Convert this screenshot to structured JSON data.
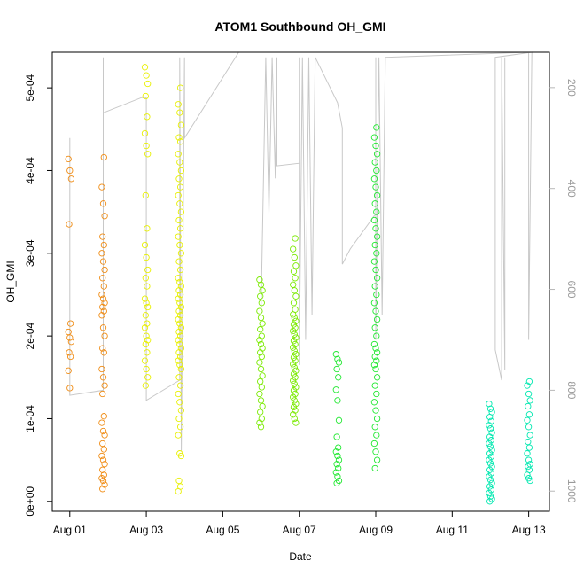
{
  "chart_data": {
    "type": "scatter",
    "title": "ATOM1 Southbound OH_GMI",
    "xlabel": "Date",
    "ylabel": "OH_GMI",
    "x_axis": {
      "type": "date",
      "range": [
        "2016-07-31T13:00",
        "2016-08-13T13:00"
      ],
      "ticks": [
        "2016-08-01",
        "2016-08-03",
        "2016-08-05",
        "2016-08-07",
        "2016-08-09",
        "2016-08-11",
        "2016-08-13"
      ],
      "tick_labels": [
        "Aug 01",
        "Aug 03",
        "Aug 05",
        "Aug 07",
        "Aug 09",
        "Aug 11",
        "Aug 13"
      ]
    },
    "y_axis": {
      "range": [
        -1.2e-05,
        0.000543
      ],
      "ticks": [
        0,
        0.0001,
        0.0002,
        0.0003,
        0.0004,
        0.0005
      ],
      "tick_labels": [
        "0e+00",
        "1e-04",
        "2e-04",
        "3e-04",
        "4e-04",
        "5e-04"
      ]
    },
    "y2_axis": {
      "description": "pressure (reversed)",
      "range": [
        1040,
        130
      ],
      "ticks": [
        200,
        400,
        600,
        800,
        1000
      ],
      "tick_labels": [
        "200",
        "400",
        "600",
        "800",
        "1000"
      ],
      "color": "#b8b8b8"
    },
    "grid": false,
    "series": [
      {
        "color": "#f08c14",
        "groups": [
          {
            "date": "2016-08-01T00:00",
            "min": 0.000137,
            "max": 0.000414,
            "values": [
              0.000414,
              0.0004,
              0.00039,
              0.000335,
              0.000215,
              0.000205,
              0.000198,
              0.000193,
              0.00018,
              0.000175,
              0.000158,
              0.000137
            ]
          },
          {
            "date": "2016-08-01T21:00",
            "min": 1.5e-05,
            "max": 0.000416,
            "values": [
              0.000416,
              0.00038,
              0.00036,
              0.000345,
              0.00032,
              0.00031,
              0.0003,
              0.00029,
              0.00028,
              0.00027,
              0.00026,
              0.00025,
              0.000245,
              0.00024,
              0.000235,
              0.00023,
              0.000225,
              0.00021,
              0.0002,
              0.000185,
              0.00018,
              0.00016,
              0.00015,
              0.00014,
              0.00013,
              0.000103,
              9.5e-05,
              8.5e-05,
              8e-05,
              7e-05,
              6.3e-05,
              5.5e-05,
              5e-05,
              4.5e-05,
              3.8e-05,
              3.2e-05,
              2.8e-05,
              2.5e-05,
              2e-05,
              1.5e-05
            ]
          }
        ]
      },
      {
        "color": "#e8f000",
        "groups": [
          {
            "date": "2016-08-03T00:00",
            "min": 0.00014,
            "max": 0.000525,
            "values": [
              0.000525,
              0.000515,
              0.000505,
              0.00049,
              0.000465,
              0.000445,
              0.00043,
              0.00042,
              0.00037,
              0.00033,
              0.00031,
              0.000295,
              0.00028,
              0.00027,
              0.00026,
              0.000245,
              0.00024,
              0.000235,
              0.000225,
              0.000215,
              0.00021,
              0.0002,
              0.000195,
              0.00019,
              0.00018,
              0.00017,
              0.00016,
              0.00015,
              0.00014
            ]
          },
          {
            "date": "2016-08-03T21:00",
            "min": 1.2e-05,
            "max": 0.0005,
            "values": [
              0.0005,
              0.00048,
              0.00047,
              0.000455,
              0.00044,
              0.000435,
              0.00042,
              0.00041,
              0.0004,
              0.00039,
              0.00038,
              0.00037,
              0.00036,
              0.00035,
              0.00034,
              0.00033,
              0.00032,
              0.00031,
              0.0003,
              0.00029,
              0.00028,
              0.00027,
              0.000265,
              0.00026,
              0.000255,
              0.00025,
              0.000245,
              0.00024,
              0.000235,
              0.00023,
              0.000225,
              0.00022,
              0.000215,
              0.00021,
              0.000205,
              0.0002,
              0.000195,
              0.00019,
              0.000185,
              0.00018,
              0.000175,
              0.00017,
              0.000165,
              0.00016,
              0.00015,
              0.00014,
              0.00013,
              0.00012,
              0.00011,
              0.0001,
              9e-05,
              8e-05,
              5.8e-05,
              5.5e-05,
              2.5e-05,
              1.8e-05,
              1.2e-05
            ]
          }
        ]
      },
      {
        "color": "#7aea00",
        "groups": [
          {
            "date": "2016-08-06T00:00",
            "min": 9e-05,
            "max": 0.000268,
            "values": [
              0.000268,
              0.000262,
              0.000255,
              0.000248,
              0.00024,
              0.00023,
              0.000222,
              0.000215,
              0.000208,
              0.0002,
              0.000195,
              0.00019,
              0.000185,
              0.00018,
              0.000175,
              0.000168,
              0.00016,
              0.000152,
              0.000145,
              0.000138,
              0.00013,
              0.000122,
              0.000115,
              0.000108,
              0.0001,
              9.5e-05,
              9e-05
            ]
          },
          {
            "date": "2016-08-06T21:00",
            "min": 9.5e-05,
            "max": 0.000318,
            "values": [
              0.000318,
              0.000305,
              0.000295,
              0.000285,
              0.000278,
              0.00027,
              0.000262,
              0.000255,
              0.000248,
              0.00024,
              0.000232,
              0.000226,
              0.000222,
              0.000218,
              0.000214,
              0.00021,
              0.000206,
              0.000202,
              0.000198,
              0.000194,
              0.00019,
              0.000186,
              0.000182,
              0.000178,
              0.000174,
              0.00017,
              0.000166,
              0.000162,
              0.000158,
              0.000154,
              0.00015,
              0.000146,
              0.000142,
              0.000138,
              0.000134,
              0.00013,
              0.000126,
              0.000122,
              0.000118,
              0.000114,
              0.00011,
              0.000105,
              0.0001,
              9.5e-05
            ]
          }
        ]
      },
      {
        "color": "#20e830",
        "groups": [
          {
            "date": "2016-08-08T00:00",
            "min": 2.2e-05,
            "max": 0.000178,
            "values": [
              0.000178,
              0.000172,
              0.000168,
              0.00016,
              0.00015,
              0.000135,
              0.000122,
              9.8e-05,
              7.8e-05,
              6.5e-05,
              6e-05,
              5.5e-05,
              5e-05,
              4.5e-05,
              4e-05,
              3.5e-05,
              3e-05,
              2.5e-05,
              2.2e-05
            ]
          },
          {
            "date": "2016-08-09T00:00",
            "min": 4e-05,
            "max": 0.000452,
            "values": [
              0.000452,
              0.00044,
              0.00043,
              0.00042,
              0.00041,
              0.0004,
              0.00039,
              0.00038,
              0.00037,
              0.00036,
              0.00035,
              0.00034,
              0.00033,
              0.00032,
              0.00031,
              0.0003,
              0.00029,
              0.00028,
              0.00027,
              0.00026,
              0.00025,
              0.00024,
              0.00023,
              0.00022,
              0.00021,
              0.0002,
              0.00019,
              0.000185,
              0.00018,
              0.000175,
              0.00017,
              0.000165,
              0.00016,
              0.00015,
              0.00014,
              0.00013,
              0.00012,
              0.00011,
              0.0001,
              9e-05,
              8e-05,
              7e-05,
              6e-05,
              5e-05,
              4e-05
            ]
          }
        ]
      },
      {
        "color": "#00e8b0",
        "groups": [
          {
            "date": "2016-08-12T00:00",
            "min": 0.0,
            "max": 0.000118,
            "values": [
              0.000118,
              0.000112,
              0.000108,
              0.000102,
              9.7e-05,
              9.2e-05,
              8.8e-05,
              8.3e-05,
              7.8e-05,
              7.4e-05,
              7e-05,
              6.6e-05,
              6.2e-05,
              5.8e-05,
              5.4e-05,
              5e-05,
              4.6e-05,
              4.2e-05,
              3.8e-05,
              3.4e-05,
              3e-05,
              2.6e-05,
              2.2e-05,
              1.8e-05,
              1.4e-05,
              1e-05,
              6e-06,
              3e-06,
              0.0
            ]
          },
          {
            "date": "2016-08-13T00:00",
            "min": 2.5e-05,
            "max": 0.000145,
            "values": [
              0.000145,
              0.00014,
              0.00013,
              0.000122,
              0.000115,
              0.000105,
              9.8e-05,
              9e-05,
              8e-05,
              7.2e-05,
              6.5e-05,
              5.8e-05,
              5e-05,
              4.5e-05,
              4.2e-05,
              3.8e-05,
              3.2e-05,
              2.8e-05,
              2.5e-05
            ]
          }
        ]
      }
    ],
    "pressure_trace": {
      "color": "#c8c8c8",
      "points": [
        [
          "2016-08-01T00:00",
          300
        ],
        [
          "2016-08-01T00:00",
          810
        ],
        [
          "2016-08-01T21:00",
          800
        ],
        [
          "2016-08-01T21:00",
          140
        ],
        [
          "2016-08-01T21:00",
          250
        ],
        [
          "2016-08-02T21:00",
          220
        ],
        [
          "2016-08-03T00:00",
          220
        ],
        [
          "2016-08-03T00:00",
          820
        ],
        [
          "2016-08-03T21:00",
          780
        ],
        [
          "2016-08-03T21:00",
          140
        ],
        [
          "2016-08-03T22:00",
          920
        ],
        [
          "2016-08-04T00:00",
          140
        ],
        [
          "2016-08-04T00:00",
          300
        ],
        [
          "2016-08-05T10:00",
          130
        ],
        [
          "2016-08-06T00:00",
          130
        ],
        [
          "2016-08-06T00:00",
          650
        ],
        [
          "2016-08-06T03:00",
          140
        ],
        [
          "2016-08-06T05:00",
          450
        ],
        [
          "2016-08-06T07:00",
          140
        ],
        [
          "2016-08-06T09:00",
          380
        ],
        [
          "2016-08-06T10:00",
          140
        ],
        [
          "2016-08-06T10:00",
          355
        ],
        [
          "2016-08-07T00:00",
          350
        ],
        [
          "2016-08-07T00:00",
          140
        ],
        [
          "2016-08-07T00:00",
          750
        ],
        [
          "2016-08-07T02:00",
          140
        ],
        [
          "2016-08-07T04:00",
          700
        ],
        [
          "2016-08-07T06:00",
          140
        ],
        [
          "2016-08-07T08:00",
          650
        ],
        [
          "2016-08-07T10:00",
          140
        ],
        [
          "2016-08-08T00:00",
          230
        ],
        [
          "2016-08-08T03:00",
          280
        ],
        [
          "2016-08-08T03:00",
          550
        ],
        [
          "2016-08-08T08:00",
          520
        ],
        [
          "2016-08-09T00:00",
          450
        ],
        [
          "2016-08-09T00:00",
          140
        ],
        [
          "2016-08-09T00:00",
          700
        ],
        [
          "2016-08-09T02:00",
          140
        ],
        [
          "2016-08-09T04:00",
          650
        ],
        [
          "2016-08-09T06:00",
          140
        ],
        [
          "2016-08-13T00:00",
          130
        ],
        [
          "2016-08-13T00:00",
          700
        ],
        [
          "2016-08-13T02:00",
          130
        ],
        [
          "2016-08-12T03:00",
          140
        ],
        [
          "2016-08-12T03:00",
          720
        ],
        [
          "2016-08-12T07:00",
          780
        ],
        [
          "2016-08-12T07:00",
          140
        ],
        [
          "2016-08-12T09:00",
          760
        ],
        [
          "2016-08-12T09:00",
          140
        ]
      ]
    }
  }
}
